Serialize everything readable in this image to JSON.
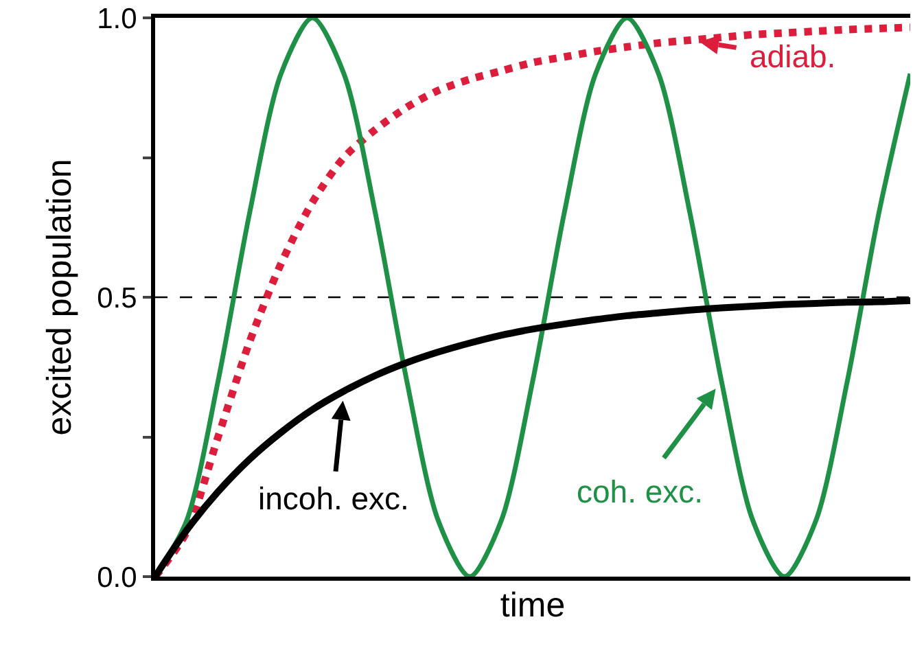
{
  "chart_data": {
    "type": "line",
    "xlabel": "time",
    "ylabel": "excited population",
    "categories": [
      null,
      null,
      null,
      null,
      null,
      null,
      null,
      null,
      null,
      null,
      null,
      null,
      null,
      null,
      null,
      null,
      null,
      null,
      null,
      null,
      null,
      null,
      null,
      null,
      null
    ],
    "series": [
      {
        "color": "#dc1e3c",
        "line_style": "dotted",
        "values": [
          0,
          0.08,
          0.25,
          0.42,
          0.56,
          0.67,
          0.75,
          0.8,
          0.84,
          0.87,
          0.89,
          0.905,
          0.92,
          0.93,
          0.94,
          0.948,
          0.955,
          0.96,
          0.965,
          0.97,
          0.973,
          0.976,
          0.979,
          0.981,
          0.983
        ]
      },
      {
        "color": "#1e9146",
        "line_style": "solid",
        "values": [
          0,
          0.1,
          0.35,
          0.65,
          0.9,
          1,
          0.9,
          0.65,
          0.35,
          0.1,
          0,
          0.1,
          0.35,
          0.65,
          0.9,
          1,
          0.9,
          0.65,
          0.35,
          0.1,
          0,
          0.1,
          0.35,
          0.65,
          0.9
        ]
      },
      {
        "color": "#000000",
        "line_style": "solid",
        "values": [
          0,
          0.083,
          0.152,
          0.21,
          0.258,
          0.299,
          0.332,
          0.36,
          0.383,
          0.402,
          0.418,
          0.432,
          0.443,
          0.452,
          0.46,
          0.467,
          0.472,
          0.477,
          0.481,
          0.484,
          0.487,
          0.489,
          0.491,
          0.492,
          0.494
        ]
      }
    ],
    "ylim": [
      0,
      1
    ],
    "yticks": [
      {
        "value": 0,
        "label": "0.0"
      },
      {
        "value": 0.25,
        "label": null
      },
      {
        "value": 0.5,
        "label": "0.5"
      },
      {
        "value": 0.75,
        "label": null
      },
      {
        "value": 1,
        "label": "1.0"
      }
    ],
    "ref_lines": [
      {
        "axis": "y",
        "value": 0.5,
        "color": "#000000",
        "line_style": "dashed"
      }
    ],
    "annotations": [
      "adiab.",
      "incoh. exc.",
      "coh. exc."
    ],
    "grid": false,
    "marker": "none"
  }
}
